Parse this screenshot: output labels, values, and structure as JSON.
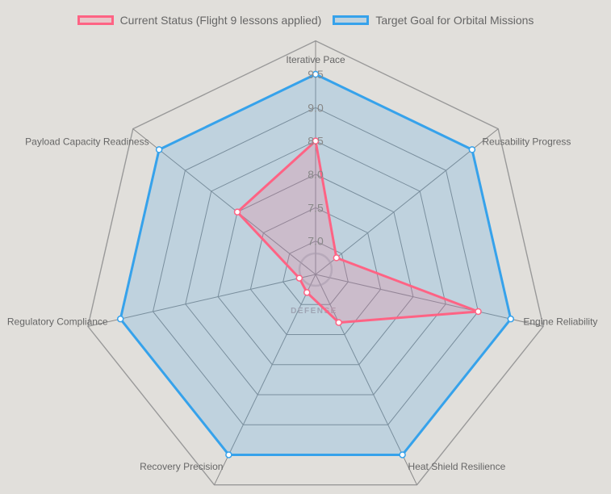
{
  "chart_data": {
    "type": "radar",
    "axes": [
      "Iterative Pace",
      "Reusability Progress",
      "Engine Reliability",
      "Heat Shield Resilience",
      "Recovery Precision",
      "Regulatory Compliance",
      "Payload Capacity Readiness"
    ],
    "r_ticks": [
      "7.0",
      "7.5",
      "8.0",
      "8.5",
      "9.0",
      "9.5"
    ],
    "r_range": [
      6.5,
      9.5
    ],
    "grid": true,
    "legend_position": "top",
    "series": [
      {
        "name": "Current Status (Flight 9 lessons applied)",
        "color": "#ff6384",
        "fill": "rgba(255,99,132,0.2)",
        "values": [
          8.5,
          6.9,
          9.0,
          7.3,
          6.8,
          6.75,
          8.0
        ]
      },
      {
        "name": "Target Goal for Orbital Missions",
        "color": "#36a2eb",
        "fill": "rgba(54,162,235,0.2)",
        "values": [
          9.5,
          9.5,
          9.5,
          9.5,
          9.5,
          9.5,
          9.5
        ]
      }
    ]
  },
  "watermark": {
    "text": "DEFENSE"
  }
}
